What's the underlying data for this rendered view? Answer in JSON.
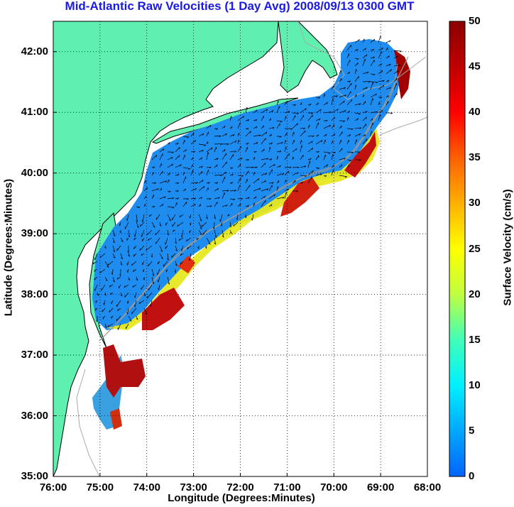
{
  "title": "Mid-Atlantic Raw Velocities (1 Day Avg) 2008/09/13 0300 GMT",
  "xlabel": "Longitude (Degrees:Minutes)",
  "ylabel": "Latitude (Degrees:Minutes)",
  "colorbar": {
    "label": "Surface Velocity (cm/s)",
    "range": [
      0,
      50
    ],
    "ticks": [
      "0",
      "5",
      "10",
      "15",
      "20",
      "25",
      "30",
      "35",
      "40",
      "45",
      "50"
    ],
    "colors": [
      "#0064ff",
      "#00a8ff",
      "#00f0ff",
      "#40ffb8",
      "#c0ff40",
      "#ffff00",
      "#ffb000",
      "#ff6000",
      "#ff0000",
      "#c00000",
      "#8b0000"
    ]
  },
  "map": {
    "lon_ticks": [
      "76:00",
      "75:00",
      "74:00",
      "73:00",
      "72:00",
      "71:00",
      "70:00",
      "69:00",
      "68:00"
    ],
    "lat_ticks": [
      "42:00",
      "41:00",
      "40:00",
      "39:00",
      "38:00",
      "37:00",
      "36:00",
      "35:00"
    ],
    "lon_range": [
      -76,
      -68
    ],
    "lat_range": [
      35,
      42.5
    ],
    "grid": "dotted",
    "land_color": "#5ff0b0",
    "coast_color": "#000000",
    "bathymetry_color": "#999999"
  }
}
